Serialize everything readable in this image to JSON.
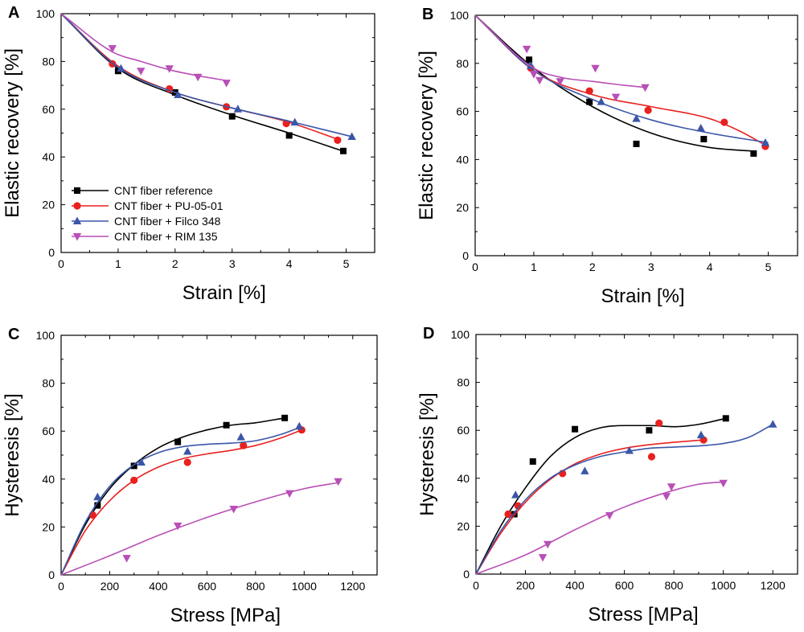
{
  "series_styles": [
    {
      "key": "ref",
      "color": "#000000",
      "marker": "square"
    },
    {
      "key": "pu",
      "color": "#e8211f",
      "marker": "circle"
    },
    {
      "key": "filco",
      "color": "#3a56a8",
      "marker": "triangle-up"
    },
    {
      "key": "rim",
      "color": "#b84fb6",
      "marker": "triangle-down"
    }
  ],
  "legend": {
    "ref": "CNT fiber reference",
    "pu": "CNT fiber + PU-05-01",
    "filco": "CNT fiber + Filco 348",
    "rim": "CNT fiber + RIM 135"
  },
  "chart_data": [
    {
      "panel": "A",
      "type": "scatter",
      "xlabel": "Strain [%]",
      "ylabel": "Elastic recovery [%]",
      "xlim": [
        0,
        5.5
      ],
      "ylim": [
        0,
        100
      ],
      "xticks": [
        0,
        1,
        2,
        3,
        4,
        5
      ],
      "yticks": [
        0,
        20,
        40,
        60,
        80,
        100
      ],
      "legend_position": "bottom-left",
      "series": [
        {
          "key": "ref",
          "name": "CNT fiber reference",
          "points": [
            [
              1.0,
              76
            ],
            [
              2.0,
              67
            ],
            [
              3.0,
              57
            ],
            [
              4.0,
              49
            ],
            [
              4.95,
              42.5
            ]
          ],
          "fit": [
            [
              0,
              100
            ],
            [
              1,
              77
            ],
            [
              2,
              66
            ],
            [
              3,
              57.5
            ],
            [
              4,
              50
            ],
            [
              5,
              42
            ]
          ]
        },
        {
          "key": "pu",
          "name": "CNT fiber + PU-05-01",
          "points": [
            [
              0.9,
              79
            ],
            [
              1.9,
              68.5
            ],
            [
              2.9,
              61
            ],
            [
              3.95,
              54
            ],
            [
              4.85,
              47
            ]
          ],
          "fit": [
            [
              0,
              100
            ],
            [
              1,
              78
            ],
            [
              2,
              67
            ],
            [
              3,
              60.5
            ],
            [
              4,
              54.5
            ],
            [
              4.9,
              47
            ]
          ]
        },
        {
          "key": "filco",
          "name": "CNT fiber + Filco 348",
          "points": [
            [
              1.05,
              77
            ],
            [
              2.05,
              66
            ],
            [
              3.1,
              60
            ],
            [
              4.1,
              54.5
            ],
            [
              5.1,
              48.5
            ]
          ],
          "fit": [
            [
              0,
              100
            ],
            [
              1,
              77.5
            ],
            [
              2,
              67
            ],
            [
              3,
              60.5
            ],
            [
              4,
              55
            ],
            [
              5.1,
              48.5
            ]
          ]
        },
        {
          "key": "rim",
          "name": "CNT fiber + RIM 135",
          "points": [
            [
              0.9,
              85.5
            ],
            [
              1.4,
              76
            ],
            [
              1.9,
              77
            ],
            [
              2.4,
              73.5
            ],
            [
              2.9,
              71
            ]
          ],
          "fit": [
            [
              0,
              100
            ],
            [
              0.9,
              84
            ],
            [
              1.4,
              80
            ],
            [
              1.9,
              76.5
            ],
            [
              2.4,
              74
            ],
            [
              2.9,
              72
            ]
          ]
        }
      ]
    },
    {
      "panel": "B",
      "type": "scatter",
      "xlabel": "Strain [%]",
      "ylabel": "Elastic recovery [%]",
      "xlim": [
        0,
        5.5
      ],
      "ylim": [
        0,
        100
      ],
      "xticks": [
        0,
        1,
        2,
        3,
        4,
        5
      ],
      "yticks": [
        0,
        20,
        40,
        60,
        80,
        100
      ],
      "series": [
        {
          "key": "ref",
          "name": "CNT fiber reference",
          "points": [
            [
              0.92,
              81.5
            ],
            [
              1.95,
              64
            ],
            [
              2.75,
              46.5
            ],
            [
              3.9,
              48.5
            ],
            [
              4.75,
              42.5
            ]
          ],
          "fit": [
            [
              0,
              100
            ],
            [
              1,
              78
            ],
            [
              2,
              62
            ],
            [
              3,
              51
            ],
            [
              4,
              45
            ],
            [
              4.75,
              43.5
            ]
          ]
        },
        {
          "key": "pu",
          "name": "CNT fiber + PU-05-01",
          "points": [
            [
              0.95,
              78
            ],
            [
              1.95,
              68.5
            ],
            [
              2.95,
              60.5
            ],
            [
              4.25,
              55.5
            ],
            [
              4.95,
              45.5
            ]
          ],
          "fit": [
            [
              0,
              100
            ],
            [
              1,
              77
            ],
            [
              2,
              67
            ],
            [
              3,
              62
            ],
            [
              4,
              57
            ],
            [
              4.5,
              52
            ],
            [
              4.95,
              46
            ]
          ]
        },
        {
          "key": "filco",
          "name": "CNT fiber + Filco 348",
          "points": [
            [
              0.95,
              79
            ],
            [
              2.15,
              64
            ],
            [
              2.75,
              57
            ],
            [
              3.85,
              53
            ],
            [
              4.95,
              47
            ]
          ],
          "fit": [
            [
              0,
              100
            ],
            [
              1,
              77
            ],
            [
              2,
              65
            ],
            [
              3,
              56.5
            ],
            [
              4,
              51
            ],
            [
              5,
              47
            ]
          ]
        },
        {
          "key": "rim",
          "name": "CNT fiber + RIM 135",
          "points": [
            [
              0.88,
              86
            ],
            [
              1.0,
              75.5
            ],
            [
              1.1,
              73
            ],
            [
              1.45,
              72.5
            ],
            [
              2.05,
              78
            ],
            [
              2.4,
              66
            ],
            [
              2.9,
              70
            ]
          ],
          "fit": [
            [
              0,
              100
            ],
            [
              1,
              78
            ],
            [
              1.5,
              74
            ],
            [
              2,
              72.5
            ],
            [
              2.5,
              71
            ],
            [
              2.9,
              70
            ]
          ]
        }
      ]
    },
    {
      "panel": "C",
      "type": "scatter",
      "xlabel": "Stress [MPa]",
      "ylabel": "Hysteresis [%]",
      "xlim": [
        0,
        1300
      ],
      "ylim": [
        0,
        100
      ],
      "xticks": [
        0,
        200,
        400,
        600,
        800,
        1000,
        1200
      ],
      "yticks": [
        0,
        20,
        40,
        60,
        80,
        100
      ],
      "series": [
        {
          "key": "ref",
          "name": "CNT fiber reference",
          "points": [
            [
              150,
              29
            ],
            [
              300,
              45.5
            ],
            [
              480,
              55.5
            ],
            [
              680,
              62.5
            ],
            [
              920,
              65.5
            ]
          ],
          "fit": [
            [
              0,
              0
            ],
            [
              100,
              21
            ],
            [
              200,
              36
            ],
            [
              300,
              46
            ],
            [
              400,
              53
            ],
            [
              500,
              57.5
            ],
            [
              600,
              60.5
            ],
            [
              700,
              62.5
            ],
            [
              800,
              63.5
            ],
            [
              920,
              65.5
            ]
          ]
        },
        {
          "key": "pu",
          "name": "CNT fiber + PU-05-01",
          "points": [
            [
              130,
              25
            ],
            [
              300,
              39.5
            ],
            [
              520,
              47
            ],
            [
              750,
              54
            ],
            [
              990,
              60.5
            ]
          ],
          "fit": [
            [
              0,
              0
            ],
            [
              100,
              18.5
            ],
            [
              200,
              31
            ],
            [
              300,
              39.5
            ],
            [
              400,
              45
            ],
            [
              500,
              48.5
            ],
            [
              600,
              50.5
            ],
            [
              700,
              52
            ],
            [
              800,
              54
            ],
            [
              900,
              57
            ],
            [
              990,
              60.5
            ]
          ]
        },
        {
          "key": "filco",
          "name": "CNT fiber + Filco 348",
          "points": [
            [
              150,
              32.5
            ],
            [
              330,
              47
            ],
            [
              520,
              51.5
            ],
            [
              740,
              57.5
            ],
            [
              980,
              62
            ]
          ],
          "fit": [
            [
              0,
              0
            ],
            [
              100,
              22
            ],
            [
              200,
              37
            ],
            [
              300,
              46
            ],
            [
              400,
              51
            ],
            [
              500,
              53.5
            ],
            [
              600,
              54.5
            ],
            [
              700,
              55
            ],
            [
              800,
              56
            ],
            [
              900,
              58.5
            ],
            [
              980,
              61.5
            ]
          ]
        },
        {
          "key": "rim",
          "name": "CNT fiber + RIM 135",
          "points": [
            [
              270,
              7
            ],
            [
              480,
              20.5
            ],
            [
              710,
              27.5
            ],
            [
              940,
              34
            ],
            [
              1140,
              39
            ]
          ],
          "fit": [
            [
              0,
              0
            ],
            [
              200,
              8
            ],
            [
              400,
              16.5
            ],
            [
              600,
              24
            ],
            [
              800,
              30.5
            ],
            [
              1000,
              36
            ],
            [
              1140,
              38.5
            ]
          ]
        }
      ]
    },
    {
      "panel": "D",
      "type": "scatter",
      "xlabel": "Stress [MPa]",
      "ylabel": "Hysteresis [%]",
      "xlim": [
        0,
        1300
      ],
      "ylim": [
        0,
        100
      ],
      "xticks": [
        0,
        200,
        400,
        600,
        800,
        1000,
        1200
      ],
      "yticks": [
        0,
        20,
        40,
        60,
        80,
        100
      ],
      "series": [
        {
          "key": "ref",
          "name": "CNT fiber reference",
          "points": [
            [
              155,
              25
            ],
            [
              230,
              47
            ],
            [
              400,
              60.5
            ],
            [
              700,
              60
            ],
            [
              1010,
              65
            ]
          ],
          "fit": [
            [
              0,
              0
            ],
            [
              100,
              20
            ],
            [
              200,
              36
            ],
            [
              300,
              49
            ],
            [
              400,
              57
            ],
            [
              500,
              61
            ],
            [
              600,
              62
            ],
            [
              700,
              62
            ],
            [
              800,
              61.5
            ],
            [
              900,
              62.5
            ],
            [
              1010,
              65
            ]
          ]
        },
        {
          "key": "pu",
          "name": "CNT fiber + PU-05-01",
          "points": [
            [
              130,
              25
            ],
            [
              170,
              28.5
            ],
            [
              350,
              42
            ],
            [
              710,
              49
            ],
            [
              740,
              63
            ],
            [
              920,
              56
            ]
          ],
          "fit": [
            [
              0,
              0
            ],
            [
              100,
              17
            ],
            [
              200,
              30
            ],
            [
              300,
              39.5
            ],
            [
              400,
              46
            ],
            [
              500,
              50
            ],
            [
              600,
              52.5
            ],
            [
              700,
              54
            ],
            [
              800,
              55
            ],
            [
              920,
              56
            ]
          ]
        },
        {
          "key": "filco",
          "name": "CNT fiber + Filco 348",
          "points": [
            [
              160,
              33
            ],
            [
              440,
              43
            ],
            [
              620,
              51.5
            ],
            [
              910,
              58
            ],
            [
              1200,
              62.5
            ]
          ],
          "fit": [
            [
              0,
              0
            ],
            [
              100,
              18
            ],
            [
              200,
              31
            ],
            [
              300,
              40
            ],
            [
              400,
              45.5
            ],
            [
              500,
              49
            ],
            [
              600,
              51
            ],
            [
              700,
              52.5
            ],
            [
              800,
              53
            ],
            [
              900,
              53.5
            ],
            [
              1000,
              54.5
            ],
            [
              1100,
              57
            ],
            [
              1200,
              62.5
            ]
          ]
        },
        {
          "key": "rim",
          "name": "CNT fiber + RIM 135",
          "points": [
            [
              270,
              7
            ],
            [
              290,
              12.5
            ],
            [
              540,
              24.5
            ],
            [
              770,
              32.5
            ],
            [
              790,
              36.5
            ],
            [
              1000,
              38
            ]
          ],
          "fit": [
            [
              0,
              0
            ],
            [
              200,
              8
            ],
            [
              400,
              18.5
            ],
            [
              600,
              28
            ],
            [
              800,
              35
            ],
            [
              900,
              37.5
            ],
            [
              1000,
              38.5
            ]
          ]
        }
      ]
    }
  ]
}
